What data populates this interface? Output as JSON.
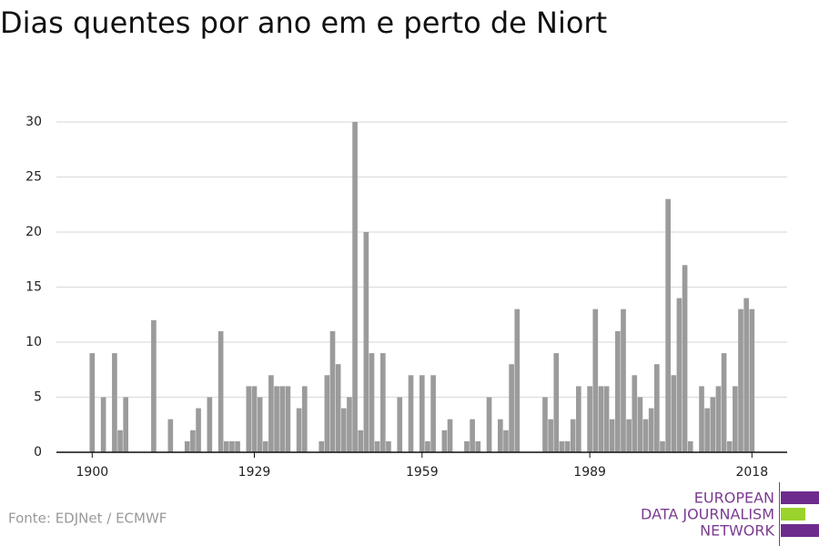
{
  "chart_data": {
    "type": "bar",
    "title": "Dias quentes por ano em e perto de Niort",
    "source": "Fonte: EDJNet / ECMWF",
    "logo": [
      "EUROPEAN",
      "DATA JOURNALISM",
      "NETWORK"
    ],
    "color": "#9b9b9b",
    "grid": true,
    "x": [
      1900,
      1901,
      1902,
      1903,
      1904,
      1905,
      1906,
      1907,
      1908,
      1909,
      1910,
      1911,
      1912,
      1913,
      1914,
      1915,
      1916,
      1917,
      1918,
      1919,
      1920,
      1921,
      1922,
      1923,
      1924,
      1925,
      1926,
      1927,
      1928,
      1929,
      1930,
      1931,
      1932,
      1933,
      1934,
      1935,
      1936,
      1937,
      1938,
      1939,
      1940,
      1941,
      1942,
      1943,
      1944,
      1945,
      1946,
      1947,
      1948,
      1949,
      1950,
      1951,
      1952,
      1953,
      1954,
      1955,
      1956,
      1957,
      1958,
      1959,
      1960,
      1961,
      1962,
      1963,
      1964,
      1965,
      1966,
      1967,
      1968,
      1969,
      1970,
      1971,
      1972,
      1973,
      1974,
      1975,
      1976,
      1977,
      1978,
      1979,
      1980,
      1981,
      1982,
      1983,
      1984,
      1985,
      1986,
      1987,
      1988,
      1989,
      1990,
      1991,
      1992,
      1993,
      1994,
      1995,
      1996,
      1997,
      1998,
      1999,
      2000,
      2001,
      2002,
      2003,
      2004,
      2005,
      2006,
      2007,
      2008,
      2009,
      2010,
      2011,
      2012,
      2013,
      2014,
      2015,
      2016,
      2017,
      2018
    ],
    "values": [
      9,
      0,
      5,
      0,
      9,
      2,
      5,
      0,
      0,
      0,
      0,
      12,
      0,
      0,
      3,
      0,
      0,
      1,
      2,
      4,
      0,
      5,
      0,
      11,
      1,
      1,
      1,
      0,
      6,
      6,
      5,
      1,
      7,
      6,
      6,
      6,
      0,
      4,
      6,
      0,
      0,
      1,
      7,
      11,
      8,
      4,
      5,
      30,
      2,
      20,
      9,
      1,
      9,
      1,
      0,
      5,
      0,
      7,
      0,
      7,
      1,
      7,
      0,
      2,
      3,
      0,
      0,
      1,
      3,
      1,
      0,
      5,
      0,
      3,
      2,
      8,
      13,
      0,
      0,
      0,
      0,
      5,
      3,
      9,
      1,
      1,
      3,
      6,
      0,
      6,
      13,
      6,
      6,
      3,
      11,
      13,
      3,
      7,
      5,
      3,
      4,
      8,
      1,
      23,
      7,
      14,
      17,
      1,
      0,
      6,
      4,
      5,
      6,
      9,
      1,
      6,
      13,
      14,
      13
    ],
    "xlim": [
      1893.6,
      2024.3
    ],
    "xticks": [
      1900,
      1929,
      1959,
      1989,
      2018
    ],
    "ylim": [
      0,
      30
    ],
    "yticks": [
      0,
      5,
      10,
      15,
      20,
      25,
      30
    ]
  }
}
